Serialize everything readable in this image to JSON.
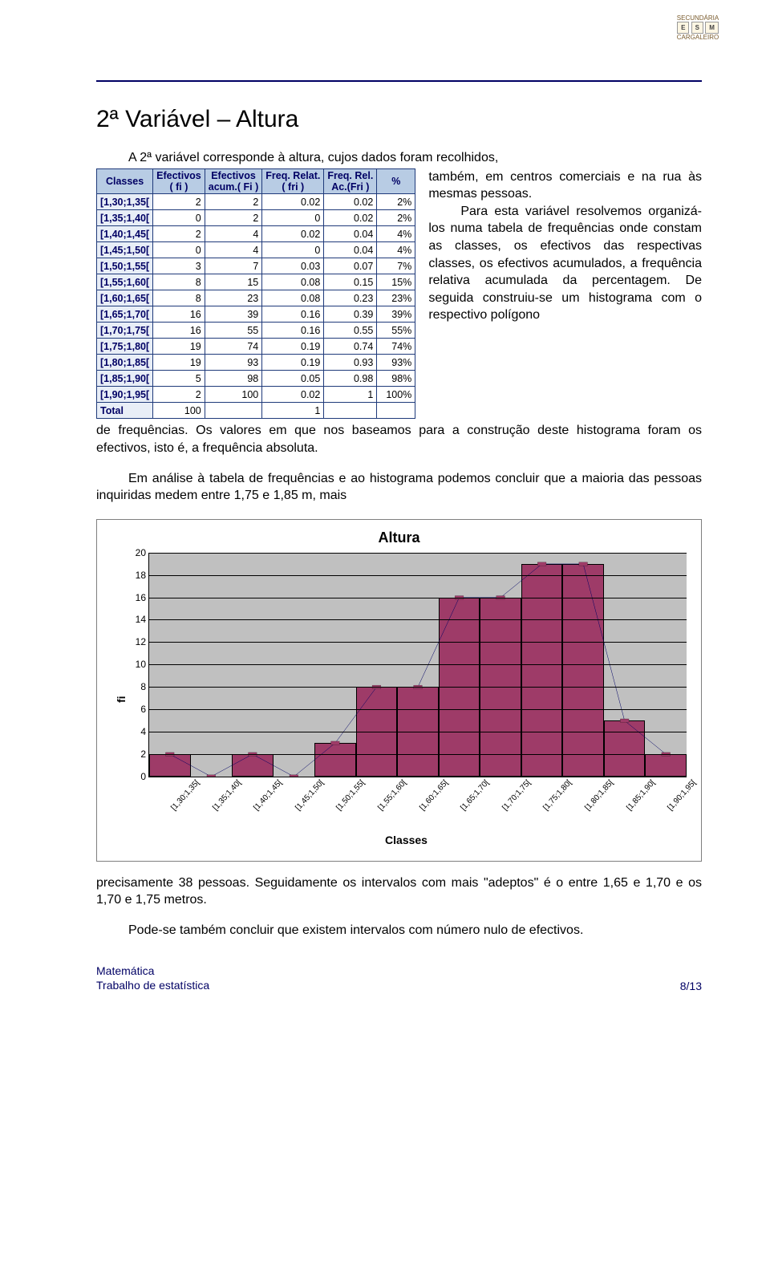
{
  "logo": {
    "line1": "SECUNDÁRIA",
    "badge1": "E",
    "badge2": "S",
    "badge3": "M",
    "line2": "CARGALEIRO"
  },
  "section_title": "2ª Variável – Altura",
  "intro_line": "A 2ª variável corresponde à altura, cujos dados foram recolhidos,",
  "side_para": "também, em centros comerciais e na rua às mesmas pessoas.\nPara esta variável resolvemos organizá-los numa tabela de frequências onde constam as classes, os efectivos das respectivas classes, os efectivos acumulados, a frequência relativa acumulada da percentagem. De seguida construiu-se um histograma com o respectivo polígono",
  "after_para1": "de frequências. Os valores em que nos baseamos para a construção deste histograma foram os efectivos, isto é, a frequência absoluta.",
  "after_para2": "Em análise à tabela de frequências e ao histograma podemos concluir que a maioria das pessoas inquiridas medem entre 1,75 e 1,85 m, mais",
  "bottom_para1": "precisamente 38 pessoas. Seguidamente os intervalos com mais \"adeptos\" é o entre 1,65 e 1,70 e os 1,70 e 1,75 metros.",
  "bottom_para2": "Pode-se também concluir que existem intervalos com número nulo de efectivos.",
  "table": {
    "headers": [
      "Classes",
      "Efectivos\n( fi )",
      "Efectivos\nacum.( Fi )",
      "Freq. Relat.\n( fri )",
      "Freq. Rel.\nAc.(Fri )",
      "%"
    ],
    "rows": [
      [
        "[1,30;1,35[",
        "2",
        "2",
        "0.02",
        "0.02",
        "2%"
      ],
      [
        "[1,35;1,40[",
        "0",
        "2",
        "0",
        "0.02",
        "2%"
      ],
      [
        "[1,40;1,45[",
        "2",
        "4",
        "0.02",
        "0.04",
        "4%"
      ],
      [
        "[1,45;1,50[",
        "0",
        "4",
        "0",
        "0.04",
        "4%"
      ],
      [
        "[1,50;1,55[",
        "3",
        "7",
        "0.03",
        "0.07",
        "7%"
      ],
      [
        "[1,55;1,60[",
        "8",
        "15",
        "0.08",
        "0.15",
        "15%"
      ],
      [
        "[1,60;1,65[",
        "8",
        "23",
        "0.08",
        "0.23",
        "23%"
      ],
      [
        "[1,65;1,70[",
        "16",
        "39",
        "0.16",
        "0.39",
        "39%"
      ],
      [
        "[1,70;1,75[",
        "16",
        "55",
        "0.16",
        "0.55",
        "55%"
      ],
      [
        "[1,75;1,80[",
        "19",
        "74",
        "0.19",
        "0.74",
        "74%"
      ],
      [
        "[1,80;1,85[",
        "19",
        "93",
        "0.19",
        "0.93",
        "93%"
      ],
      [
        "[1,85;1,90[",
        "5",
        "98",
        "0.05",
        "0.98",
        "98%"
      ],
      [
        "[1,90;1,95[",
        "2",
        "100",
        "0.02",
        "1",
        "100%"
      ]
    ],
    "total_row": [
      "Total",
      "100",
      "",
      "1",
      "",
      ""
    ]
  },
  "chart": {
    "title": "Altura",
    "ylabel": "fi",
    "xlabel": "Classes",
    "ylim": [
      0,
      20
    ],
    "ytick_step": 2,
    "grid_color": "#000000",
    "background_color": "#c0c0c0",
    "bar_fill": "#9e3b68",
    "bar_border": "#000000",
    "line_color": "#000064",
    "marker_fill": "#9e3b68",
    "categories": [
      "[1,30;1,35[",
      "[1,35;1,40[",
      "[1,40;1,45[",
      "[1,45;1,50[",
      "[1,50;1,55[",
      "[1,55;1,60[",
      "[1,60;1,65[",
      "[1,65;1,70[",
      "[1,70;1,75[",
      "[1,75;1,80[",
      "[1,80;1,85[",
      "[1,85;1,90[",
      "[1,90;1,95["
    ],
    "values": [
      2,
      0,
      2,
      0,
      3,
      8,
      8,
      16,
      16,
      19,
      19,
      5,
      2
    ]
  },
  "footer": {
    "left1": "Matemática",
    "left2": "Trabalho de estatística",
    "right": "8/13"
  }
}
